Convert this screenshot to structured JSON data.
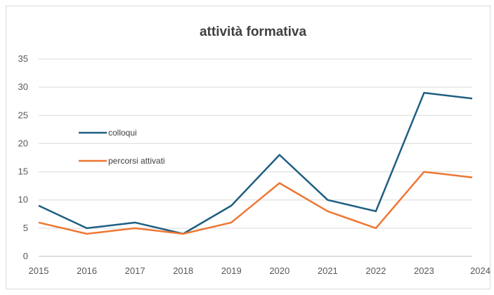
{
  "chart_data": {
    "type": "line",
    "title": "attività formativa",
    "xlabel": "",
    "ylabel": "",
    "categories": [
      "2015",
      "2016",
      "2017",
      "2018",
      "2019",
      "2020",
      "2021",
      "2022",
      "2023",
      "2024"
    ],
    "yticks": [
      "0",
      "5",
      "10",
      "15",
      "20",
      "25",
      "30",
      "35"
    ],
    "ylim": [
      0,
      35
    ],
    "grid": true,
    "legend": "inside-left",
    "series": [
      {
        "name": "colloqui",
        "color": "#1f5f82",
        "values": [
          9,
          5,
          6,
          4,
          9,
          18,
          10,
          8,
          29,
          28
        ]
      },
      {
        "name": "percorsi attivati",
        "color": "#ee7733",
        "values": [
          6,
          4,
          5,
          4,
          6,
          13,
          8,
          5,
          15,
          14
        ]
      }
    ]
  }
}
